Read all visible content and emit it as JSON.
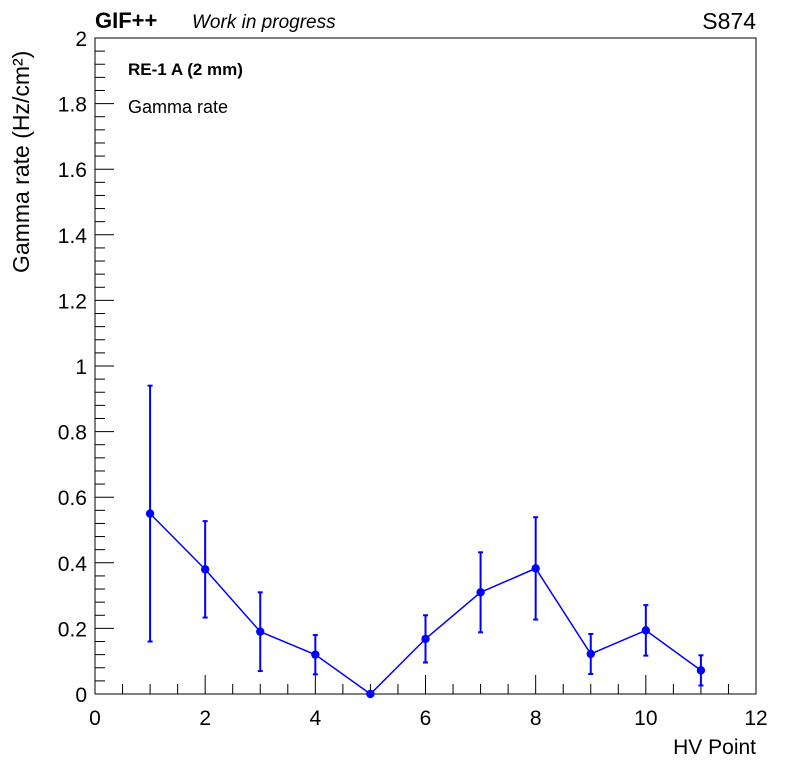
{
  "header": {
    "brand": "GIF++",
    "subtitle": "Work in progress",
    "run": "S874"
  },
  "annotations": [
    "RE-1 A (2 mm)",
    "Gamma rate"
  ],
  "chart_data": {
    "type": "scatter",
    "xlabel": "HV Point",
    "ylabel": "Gamma rate (Hz/cm²)",
    "xlim": [
      0,
      12
    ],
    "ylim": [
      0,
      2
    ],
    "x_ticks": [
      "0",
      "2",
      "4",
      "6",
      "8",
      "10",
      "12"
    ],
    "y_ticks": [
      "0",
      "0.2",
      "0.4",
      "0.6",
      "0.8",
      "1",
      "1.2",
      "1.4",
      "1.6",
      "1.8",
      "2"
    ],
    "grid": false,
    "color": "#0000ff",
    "series": [
      {
        "points": [
          {
            "x": 1,
            "y": 0.55,
            "err": 0.39
          },
          {
            "x": 2,
            "y": 0.38,
            "err": 0.147
          },
          {
            "x": 3,
            "y": 0.19,
            "err": 0.12
          },
          {
            "x": 4,
            "y": 0.12,
            "err": 0.06
          },
          {
            "x": 5,
            "y": 0.0,
            "err": 0.0
          },
          {
            "x": 6,
            "y": 0.168,
            "err": 0.072
          },
          {
            "x": 7,
            "y": 0.31,
            "err": 0.122
          },
          {
            "x": 8,
            "y": 0.383,
            "err": 0.156
          },
          {
            "x": 9,
            "y": 0.122,
            "err": 0.061
          },
          {
            "x": 10,
            "y": 0.194,
            "err": 0.077
          },
          {
            "x": 11,
            "y": 0.072,
            "err": 0.046
          }
        ]
      }
    ]
  }
}
